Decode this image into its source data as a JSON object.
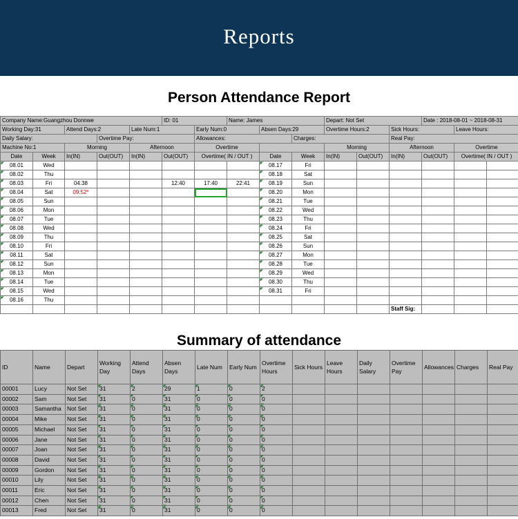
{
  "banner": {
    "title": "Reports",
    "color": "#0f3556"
  },
  "report": {
    "title": "Person Attendance Report",
    "info": {
      "company": "Company Name:Guangzhou Donnwe",
      "id": "ID: 01",
      "name": "Name: James",
      "depart": "Depart: Not Set",
      "date": "Date : 2018-08-01 ~ 2018-08-31",
      "working_day": "Working Day:31",
      "attend_days": "Attend Days:2",
      "late_num": "Late Num:1",
      "early_num": "Early Num:0",
      "absen_days": "Absen Days:29",
      "overtime_hours": "Overtime Hours:2",
      "sick_hours": "Sick Hours:",
      "leave_hours": "Leave Hours:",
      "daily_salary": "Daily Salary:",
      "overtime_pay": "Overtime Pay:",
      "allowances": "Allowances:",
      "charges": "Charges:",
      "real_pay": "Real Pay:",
      "machine_no": "Machine No:1",
      "staff_sig": "Staff Sig:"
    },
    "headers": {
      "morning": "Morning",
      "afternoon": "Afternoon",
      "overtime": "Overtime",
      "date": "Date",
      "week": "Week",
      "in": "In(IN)",
      "out": "Out(OUT)",
      "ot_inout": "Overtime( IN / OUT )",
      "ot_inout2": "Overtime( IN / OUT )"
    },
    "rows": [
      {
        "d1": "08.01",
        "w1": "Wed",
        "min": "",
        "aout": "",
        "otin": "",
        "otout": "",
        "d2": "08.17",
        "w2": "Fri"
      },
      {
        "d1": "08.02",
        "w1": "Thu",
        "min": "",
        "aout": "",
        "otin": "",
        "otout": "",
        "d2": "08.18",
        "w2": "Sat"
      },
      {
        "d1": "08.03",
        "w1": "Fri",
        "min": "04:38",
        "aout": "12:40",
        "otin": "17:40",
        "otout": "22:41",
        "d2": "08.19",
        "w2": "Sun"
      },
      {
        "d1": "08.04",
        "w1": "Sat",
        "min": "09:52*",
        "aout": "",
        "otin": "",
        "otout": "",
        "d2": "08.20",
        "w2": "Mon"
      },
      {
        "d1": "08.05",
        "w1": "Sun",
        "min": "",
        "aout": "",
        "otin": "",
        "otout": "",
        "d2": "08.21",
        "w2": "Tue"
      },
      {
        "d1": "08.06",
        "w1": "Mon",
        "min": "",
        "aout": "",
        "otin": "",
        "otout": "",
        "d2": "08.22",
        "w2": "Wed"
      },
      {
        "d1": "08.07",
        "w1": "Tue",
        "min": "",
        "aout": "",
        "otin": "",
        "otout": "",
        "d2": "08.23",
        "w2": "Thu"
      },
      {
        "d1": "08.08",
        "w1": "Wed",
        "min": "",
        "aout": "",
        "otin": "",
        "otout": "",
        "d2": "08.24",
        "w2": "Fri"
      },
      {
        "d1": "08.09",
        "w1": "Thu",
        "min": "",
        "aout": "",
        "otin": "",
        "otout": "",
        "d2": "08.25",
        "w2": "Sat"
      },
      {
        "d1": "08.10",
        "w1": "Fri",
        "min": "",
        "aout": "",
        "otin": "",
        "otout": "",
        "d2": "08.26",
        "w2": "Sun"
      },
      {
        "d1": "08.11",
        "w1": "Sat",
        "min": "",
        "aout": "",
        "otin": "",
        "otout": "",
        "d2": "08.27",
        "w2": "Mon"
      },
      {
        "d1": "08.12",
        "w1": "Sun",
        "min": "",
        "aout": "",
        "otin": "",
        "otout": "",
        "d2": "08.28",
        "w2": "Tue"
      },
      {
        "d1": "08.13",
        "w1": "Mon",
        "min": "",
        "aout": "",
        "otin": "",
        "otout": "",
        "d2": "08.29",
        "w2": "Wed"
      },
      {
        "d1": "08.14",
        "w1": "Tue",
        "min": "",
        "aout": "",
        "otin": "",
        "otout": "",
        "d2": "08.30",
        "w2": "Thu"
      },
      {
        "d1": "08.15",
        "w1": "Wed",
        "min": "",
        "aout": "",
        "otin": "",
        "otout": "",
        "d2": "08.31",
        "w2": "Fri"
      },
      {
        "d1": "08.16",
        "w1": "Thu",
        "min": "",
        "aout": "",
        "otin": "",
        "otout": "",
        "d2": "",
        "w2": ""
      }
    ],
    "late_color": "#d20000"
  },
  "summary": {
    "title": "Summary of attendance",
    "headers": [
      "ID",
      "Name",
      "Depart",
      "Working Day",
      "Attend Days",
      "Absen Days",
      "Late Num",
      "Early Num",
      "Overtime Hours",
      "Sick Hours",
      "Leave Hours",
      "Daily Salary",
      "Overtime Pay",
      "Allowances",
      "Charges",
      "Real Pay"
    ],
    "rows": [
      [
        "00001",
        "Lucy",
        "Not Set",
        "31",
        "2",
        "29",
        "1",
        "0",
        "2"
      ],
      [
        "00002",
        "Sam",
        "Not Set",
        "31",
        "0",
        "31",
        "0",
        "0",
        "0"
      ],
      [
        "00003",
        "Samantha",
        "Not Set",
        "31",
        "0",
        "31",
        "0",
        "0",
        "0"
      ],
      [
        "00004",
        "Mike",
        "Not Set",
        "31",
        "0",
        "31",
        "0",
        "0",
        "0"
      ],
      [
        "00005",
        "Michael",
        "Not Set",
        "31",
        "0",
        "31",
        "0",
        "0",
        "0"
      ],
      [
        "00006",
        "Jane",
        "Not Set",
        "31",
        "0",
        "31",
        "0",
        "0",
        "0"
      ],
      [
        "00007",
        "Joan",
        "Not Set",
        "31",
        "0",
        "31",
        "0",
        "0",
        "0"
      ],
      [
        "00008",
        "David",
        "Not Set",
        "31",
        "0",
        "31",
        "0",
        "0",
        "0"
      ],
      [
        "00009",
        "Gordon",
        "Not Set",
        "31",
        "0",
        "31",
        "0",
        "0",
        "0"
      ],
      [
        "00010",
        "Lily",
        "Not Set",
        "31",
        "0",
        "31",
        "0",
        "0",
        "0"
      ],
      [
        "00011",
        "Eric",
        "Not Set",
        "31",
        "0",
        "31",
        "0",
        "0",
        "0"
      ],
      [
        "00012",
        "Chen",
        "Not Set",
        "31",
        "0",
        "31",
        "0",
        "0",
        "0"
      ],
      [
        "00013",
        "Fred",
        "Not Set",
        "31",
        "0",
        "31",
        "0",
        "0",
        "0"
      ]
    ]
  }
}
